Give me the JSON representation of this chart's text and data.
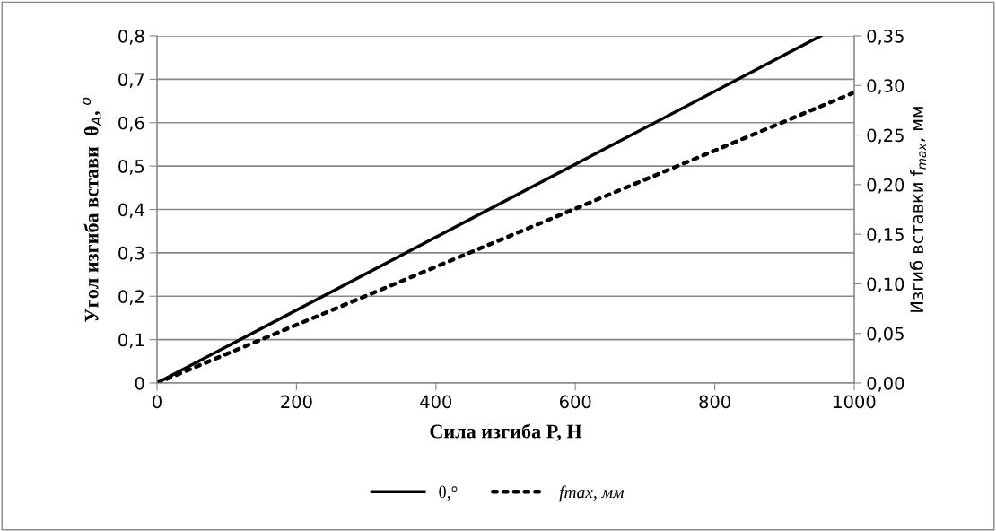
{
  "chart_data": {
    "type": "line",
    "xlabel": "Сила изгиба P, H",
    "ylabel": "Угол изгиба встави  θ$_{A}$, $^{o}$",
    "y2label": "Изгиб вставки f$_{max}$, мм",
    "series": [
      {
        "name": "θ,°",
        "color": "#000000",
        "x": [
          0,
          952
        ],
        "values": [
          0,
          0.8
        ],
        "line_style": "solid"
      },
      {
        "name": "fmax, мм",
        "color": "#000000",
        "x": [
          0,
          1000
        ],
        "values": [
          0,
          0.293
        ],
        "line_style": "dotted",
        "axis": "y2"
      }
    ],
    "xlim": [
      0,
      1000
    ],
    "xticks": [
      0,
      200,
      400,
      600,
      800,
      1000
    ],
    "ylim": [
      0,
      0.8
    ],
    "yticks": [
      0,
      {
        "value": 0.1,
        "label": "0,1"
      },
      {
        "value": 0.2,
        "label": "0,2"
      },
      {
        "value": 0.3,
        "label": "0,3"
      },
      {
        "value": 0.4,
        "label": "0,4"
      },
      {
        "value": 0.5,
        "label": "0,5"
      },
      {
        "value": 0.6,
        "label": "0,6"
      },
      {
        "value": 0.7,
        "label": "0,7"
      },
      {
        "value": 0.8,
        "label": "0,8"
      }
    ],
    "y2lim": [
      0,
      0.35
    ],
    "y2ticks": [
      {
        "value": 0,
        "label": "0,00"
      },
      {
        "value": 0.05,
        "label": "0,05"
      },
      {
        "value": 0.1,
        "label": "0,10"
      },
      {
        "value": 0.15,
        "label": "0,15"
      },
      {
        "value": 0.2,
        "label": "0,20"
      },
      {
        "value": 0.25,
        "label": "0,25"
      },
      {
        "value": 0.3,
        "label": "0,30"
      },
      {
        "value": 0.35,
        "label": "0,35"
      }
    ],
    "grid": "y",
    "legend": "bottom",
    "marker": "none"
  }
}
